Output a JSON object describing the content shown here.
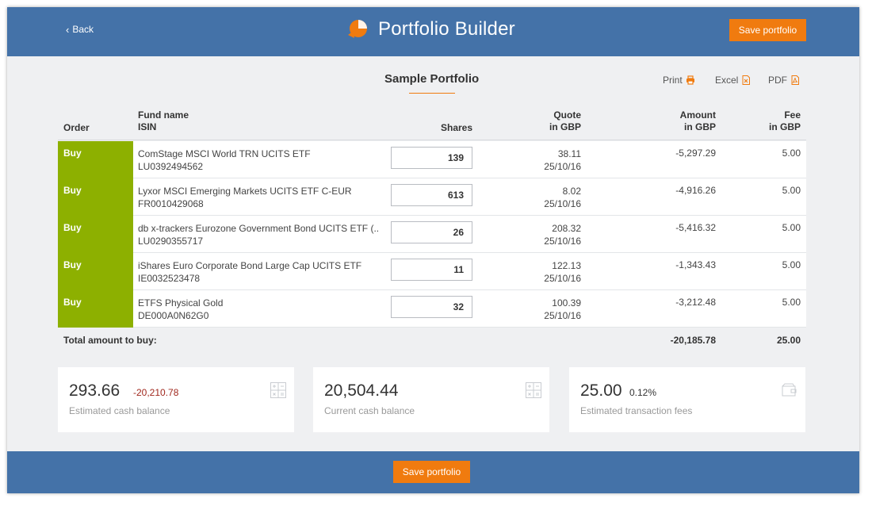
{
  "header": {
    "back_label": "Back",
    "title": "Portfolio Builder",
    "save_label": "Save portfolio",
    "brand_color": "#4472a8",
    "accent_color": "#f07b0f"
  },
  "portfolio": {
    "name": "Sample Portfolio",
    "exports": {
      "print": "Print",
      "excel": "Excel",
      "pdf": "PDF"
    }
  },
  "table": {
    "headers": {
      "order": "Order",
      "fund_name": "Fund name",
      "isin": "ISIN",
      "shares": "Shares",
      "quote": "Quote",
      "quote_unit": "in GBP",
      "amount": "Amount",
      "amount_unit": "in GBP",
      "fee": "Fee",
      "fee_unit": "in GBP"
    },
    "rows": [
      {
        "order": "Buy",
        "fund": "ComStage MSCI World TRN UCITS ETF",
        "isin": "LU0392494562",
        "shares": "139",
        "quote": "38.11",
        "date": "25/10/16",
        "amount": "-5,297.29",
        "fee": "5.00"
      },
      {
        "order": "Buy",
        "fund": "Lyxor MSCI Emerging Markets UCITS ETF C-EUR",
        "isin": "FR0010429068",
        "shares": "613",
        "quote": "8.02",
        "date": "25/10/16",
        "amount": "-4,916.26",
        "fee": "5.00"
      },
      {
        "order": "Buy",
        "fund": "db x-trackers Eurozone Government Bond UCITS ETF (...",
        "isin": "LU0290355717",
        "shares": "26",
        "quote": "208.32",
        "date": "25/10/16",
        "amount": "-5,416.32",
        "fee": "5.00"
      },
      {
        "order": "Buy",
        "fund": "iShares Euro Corporate Bond Large Cap UCITS ETF",
        "isin": "IE0032523478",
        "shares": "11",
        "quote": "122.13",
        "date": "25/10/16",
        "amount": "-1,343.43",
        "fee": "5.00"
      },
      {
        "order": "Buy",
        "fund": "ETFS Physical Gold",
        "isin": "DE000A0N62G0",
        "shares": "32",
        "quote": "100.39",
        "date": "25/10/16",
        "amount": "-3,212.48",
        "fee": "5.00"
      }
    ],
    "total": {
      "label": "Total amount to buy:",
      "amount": "-20,185.78",
      "fee": "25.00"
    }
  },
  "summary": {
    "estimated_cash": {
      "value": "293.66",
      "delta": "-20,210.78",
      "delta_color": "#a0281e",
      "label": "Estimated cash balance",
      "icon": "calculator-icon"
    },
    "current_cash": {
      "value": "20,504.44",
      "label": "Current cash balance",
      "icon": "calculator-icon"
    },
    "fees": {
      "value": "25.00",
      "delta": "0.12%",
      "label": "Estimated transaction fees",
      "icon": "wallet-icon"
    }
  },
  "footer": {
    "save_label": "Save portfolio"
  }
}
